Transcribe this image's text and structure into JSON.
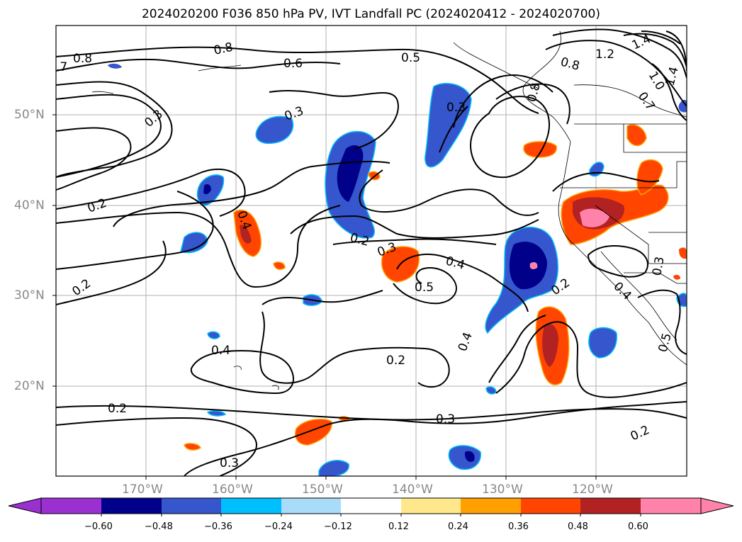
{
  "title": "2024020200 F036 850 hPa PV, IVT Landfall PC (2024020412 - 2024020700)",
  "map": {
    "lat_ticks": [
      "50°N",
      "40°N",
      "30°N",
      "20°N"
    ],
    "lon_ticks": [
      "170°W",
      "160°W",
      "150°W",
      "140°W",
      "130°W",
      "120°W"
    ],
    "contour_labels": [
      "0.8",
      "0.8",
      ".7",
      "0.6",
      "0.5",
      "1.2",
      "1.4",
      "0.8",
      "1.0",
      "0.7",
      "1.4",
      "0.3",
      "0.3",
      "0.3",
      "0.8",
      "0.2",
      "0.4",
      "0.2",
      "0.3",
      "0.4",
      "0.5",
      "0.2",
      "0.2",
      "0.4",
      "0.2",
      "0.4",
      "0.3",
      "0.4",
      "0.5",
      "0.2",
      "0.3",
      "0.2",
      "0.3"
    ]
  },
  "colorbar": {
    "ticks": [
      "−0.60",
      "−0.48",
      "−0.36",
      "−0.24",
      "−0.12",
      "0.12",
      "0.24",
      "0.36",
      "0.48",
      "0.60"
    ],
    "colors": [
      "#9b30d0",
      "#00008b",
      "#3556cc",
      "#00bfff",
      "#a8dcf8",
      "#ffffff",
      "#ffe88c",
      "#ffa000",
      "#ff4500",
      "#b22222",
      "#ff82ab"
    ]
  }
}
